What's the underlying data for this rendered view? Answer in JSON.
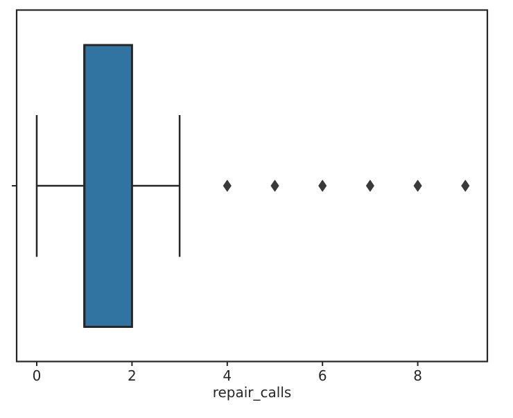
{
  "chart_data": {
    "type": "boxplot",
    "orientation": "horizontal",
    "title": "",
    "xlabel": "repair_calls",
    "ylabel": "",
    "x_tick_labels": [
      "0",
      "2",
      "4",
      "6",
      "8"
    ],
    "x_tick_values": [
      0,
      2,
      4,
      6,
      8
    ],
    "xlim": [
      -0.42,
      9.46
    ],
    "grid": false,
    "legend": "none",
    "series": [
      {
        "name": "repair_calls",
        "whisker_low": 0,
        "q1": 1,
        "median": 1,
        "q3": 2,
        "whisker_high": 3,
        "outliers": [
          4,
          5,
          6,
          7,
          8,
          9
        ]
      }
    ],
    "colors": {
      "box_fill": "#3274a1",
      "box_edge": "#262626",
      "whisker": "#262626",
      "flier": "#3a3a3a",
      "axis": "#262626",
      "tick_label": "#262626",
      "background": "#ffffff"
    }
  }
}
